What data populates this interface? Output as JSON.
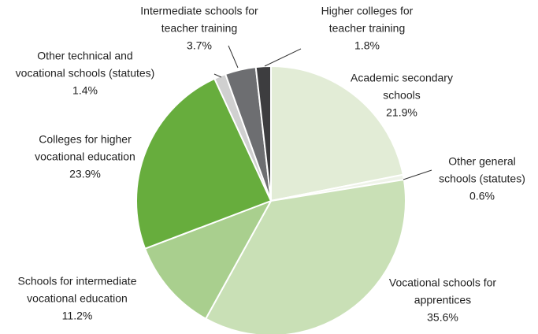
{
  "chart_data": {
    "type": "pie",
    "categories": [
      [
        "Academic secondary",
        "schools"
      ],
      [
        "Other general",
        "schools (statutes)"
      ],
      [
        "Vocational schools for",
        "apprentices"
      ],
      [
        "Schools for intermediate",
        "vocational education"
      ],
      [
        "Colleges for higher",
        "vocational education"
      ],
      [
        "Other technical and",
        "vocational schools (statutes)"
      ],
      [
        "Intermediate schools for",
        "teacher training"
      ],
      [
        "Higher colleges for",
        "teacher training"
      ]
    ],
    "values": [
      21.9,
      0.6,
      35.6,
      11.2,
      23.9,
      1.4,
      3.7,
      1.8
    ],
    "value_labels": [
      "21.9%",
      "0.6%",
      "35.6%",
      "11.2%",
      "23.9%",
      "1.4%",
      "3.7%",
      "1.8%"
    ],
    "colors": [
      "#e2ecd6",
      "#eef3e8",
      "#c9e0b6",
      "#a9cf8e",
      "#67ad3d",
      "#d0d0d0",
      "#6d6e71",
      "#3d3d3f"
    ]
  }
}
